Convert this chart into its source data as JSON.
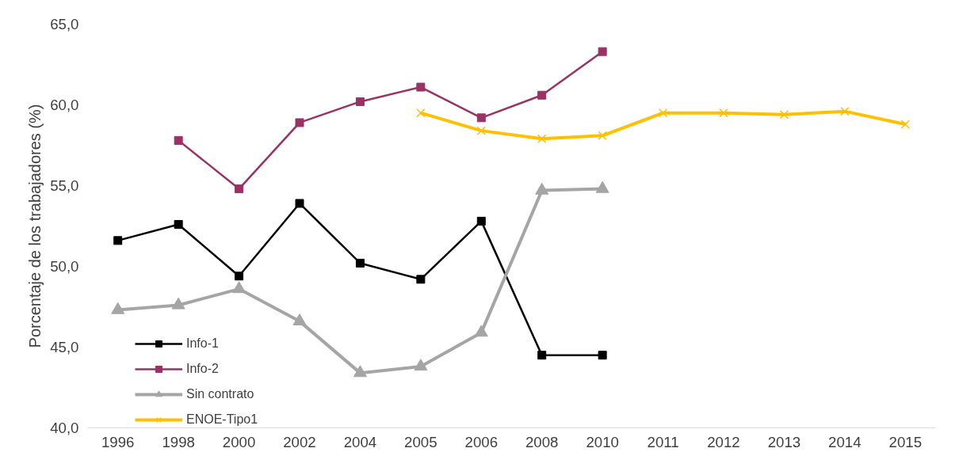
{
  "chart_data": {
    "type": "line",
    "ylabel": "Porcentaje de los trabajadores (%)",
    "categories": [
      "1996",
      "1998",
      "2000",
      "2002",
      "2004",
      "2005",
      "2006",
      "2008",
      "2010",
      "2011",
      "2012",
      "2013",
      "2014",
      "2015"
    ],
    "series": [
      {
        "name": "Info-1",
        "color": "#000000",
        "marker": "square",
        "values": [
          51.6,
          52.6,
          49.4,
          53.9,
          50.2,
          49.2,
          52.8,
          44.5,
          44.5,
          null,
          null,
          null,
          null,
          null
        ]
      },
      {
        "name": "Info-2",
        "color": "#993366",
        "marker": "square",
        "values": [
          null,
          57.8,
          54.8,
          58.9,
          60.2,
          61.1,
          59.2,
          60.6,
          63.3,
          null,
          null,
          null,
          null,
          null
        ]
      },
      {
        "name": "Sin contrato",
        "color": "#a5a5a5",
        "marker": "triangle",
        "values": [
          47.3,
          47.6,
          48.6,
          46.6,
          43.4,
          43.8,
          45.9,
          54.7,
          54.8,
          null,
          null,
          null,
          null,
          null
        ]
      },
      {
        "name": "ENOE-Tipo1",
        "color": "#ffc000",
        "marker": "cross",
        "values": [
          null,
          null,
          null,
          null,
          null,
          59.5,
          58.4,
          57.9,
          58.1,
          59.5,
          59.5,
          59.4,
          59.6,
          58.8
        ]
      }
    ],
    "ylim": [
      40,
      65
    ],
    "yticks": [
      {
        "value": 40,
        "label": "40,0"
      },
      {
        "value": 45,
        "label": "45,0"
      },
      {
        "value": 50,
        "label": "50,0"
      },
      {
        "value": 55,
        "label": "55,0"
      },
      {
        "value": 60,
        "label": "60,0"
      },
      {
        "value": 65,
        "label": "65,0"
      }
    ],
    "grid": false,
    "legend": "bottom left"
  }
}
